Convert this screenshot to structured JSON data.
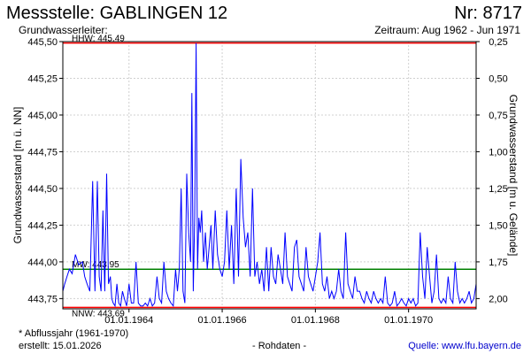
{
  "header": {
    "title": "Messstelle: GABLINGEN 12",
    "number": "Nr: 8717",
    "subtitle": "Grundwasserleiter:",
    "period": "Zeitraum: Aug 1962 - Jun 1971"
  },
  "footer": {
    "footnote": "* Abflussjahr (1961-1970)",
    "created": "erstellt:  15.01.2026",
    "rawdata": "- Rohdaten -",
    "source": "Quelle:  www.lfu.bayern.de"
  },
  "colors": {
    "series": "#0000ff",
    "extreme_lines": "#ff0000",
    "mean_line": "#008000",
    "grid": "#d0d0d0"
  },
  "chart_data": {
    "type": "line",
    "ylabel_left": "Grundwasserstand [m ü. NN]",
    "ylabel_right": "Grundwasserstand [m u. Gelände]",
    "ylim": [
      443.68,
      445.5
    ],
    "left_ticks": [
      "443,75",
      "444,00",
      "444,25",
      "444,50",
      "444,75",
      "445,00",
      "445,25",
      "445,50"
    ],
    "right_ticks": [
      "0,25",
      "0,50",
      "0,75",
      "1,00",
      "1,25",
      "1,50",
      "1,75",
      "2,00"
    ],
    "right_tick_values": [
      445.5,
      445.25,
      445.0,
      444.75,
      444.5,
      444.25,
      444.0,
      443.75
    ],
    "xlim": [
      "1962-08",
      "1971-06"
    ],
    "x_ticks": [
      "01.01.1964",
      "01.01.1966",
      "01.01.1968",
      "01.01.1970"
    ],
    "x_tick_values": [
      1964.0,
      1966.0,
      1968.0,
      1970.0
    ],
    "x_range_numeric": [
      1962.58,
      1971.45
    ],
    "grid": true,
    "reference_lines": [
      {
        "label": "HHW: 445.49",
        "value": 445.49,
        "color": "#ff0000"
      },
      {
        "label": "MW: 443.95",
        "value": 443.95,
        "color": "#008000"
      },
      {
        "label": "NNW: 443.69",
        "value": 443.69,
        "color": "#ff0000"
      }
    ],
    "series": [
      {
        "x": [
          1962.58,
          1962.62,
          1962.67,
          1962.72,
          1962.78,
          1962.85,
          1962.92,
          1963.0,
          1963.05,
          1963.1,
          1963.16,
          1963.22,
          1963.27,
          1963.32,
          1963.36,
          1963.4,
          1963.44,
          1963.48,
          1963.52,
          1963.56,
          1963.6,
          1963.63,
          1963.66,
          1963.7,
          1963.74,
          1963.78,
          1963.82,
          1963.86,
          1963.9,
          1963.95,
          1964.0,
          1964.05,
          1964.1,
          1964.15,
          1964.2,
          1964.25,
          1964.3,
          1964.35,
          1964.4,
          1964.45,
          1964.5,
          1964.55,
          1964.6,
          1964.65,
          1964.7,
          1964.75,
          1964.8,
          1964.85,
          1964.9,
          1964.95,
          1965.0,
          1965.04,
          1965.08,
          1965.12,
          1965.16,
          1965.2,
          1965.24,
          1965.28,
          1965.32,
          1965.35,
          1965.38,
          1965.41,
          1965.44,
          1965.47,
          1965.5,
          1965.53,
          1965.56,
          1965.6,
          1965.64,
          1965.68,
          1965.72,
          1965.76,
          1965.8,
          1965.85,
          1965.9,
          1965.95,
          1966.0,
          1966.05,
          1966.1,
          1966.15,
          1966.2,
          1966.25,
          1966.3,
          1966.35,
          1966.4,
          1966.45,
          1966.5,
          1966.55,
          1966.6,
          1966.65,
          1966.7,
          1966.75,
          1966.8,
          1966.85,
          1966.9,
          1966.95,
          1967.0,
          1967.05,
          1967.1,
          1967.15,
          1967.2,
          1967.25,
          1967.3,
          1967.35,
          1967.4,
          1967.45,
          1967.5,
          1967.55,
          1967.6,
          1967.65,
          1967.7,
          1967.75,
          1967.8,
          1967.85,
          1967.9,
          1967.95,
          1968.0,
          1968.05,
          1968.1,
          1968.15,
          1968.2,
          1968.25,
          1968.3,
          1968.35,
          1968.4,
          1968.45,
          1968.5,
          1968.55,
          1968.6,
          1968.65,
          1968.7,
          1968.75,
          1968.8,
          1968.85,
          1968.9,
          1968.95,
          1969.0,
          1969.05,
          1969.1,
          1969.15,
          1969.2,
          1969.25,
          1969.3,
          1969.35,
          1969.4,
          1969.45,
          1969.5,
          1969.55,
          1969.6,
          1969.65,
          1969.7,
          1969.75,
          1969.8,
          1969.85,
          1969.9,
          1969.95,
          1970.0,
          1970.05,
          1970.1,
          1970.15,
          1970.2,
          1970.25,
          1970.3,
          1970.35,
          1970.4,
          1970.45,
          1970.5,
          1970.55,
          1970.6,
          1970.65,
          1970.7,
          1970.75,
          1970.8,
          1970.85,
          1970.9,
          1970.95,
          1971.0,
          1971.05,
          1971.1,
          1971.15,
          1971.2,
          1971.25,
          1971.3,
          1971.35,
          1971.4,
          1971.45
        ],
        "y": [
          443.8,
          443.85,
          443.9,
          443.95,
          443.92,
          444.05,
          443.98,
          444.0,
          443.9,
          443.85,
          443.8,
          444.55,
          443.8,
          444.55,
          443.9,
          443.8,
          444.35,
          443.8,
          444.6,
          443.85,
          443.9,
          443.75,
          443.72,
          443.7,
          443.85,
          443.72,
          443.7,
          443.8,
          443.75,
          443.7,
          443.85,
          443.72,
          443.72,
          444.0,
          443.72,
          443.7,
          443.7,
          443.72,
          443.7,
          443.75,
          443.7,
          443.72,
          443.9,
          443.75,
          443.72,
          444.0,
          443.8,
          443.75,
          443.72,
          443.7,
          443.95,
          443.8,
          443.95,
          444.5,
          443.8,
          443.72,
          444.6,
          444.2,
          444.0,
          445.15,
          443.8,
          444.3,
          445.49,
          443.95,
          444.3,
          444.2,
          444.35,
          444.0,
          444.2,
          443.95,
          444.1,
          444.25,
          443.95,
          444.35,
          444.05,
          443.95,
          443.9,
          444.0,
          444.35,
          443.95,
          444.25,
          443.85,
          444.5,
          443.9,
          444.7,
          444.3,
          444.1,
          444.2,
          443.9,
          444.5,
          443.9,
          444.0,
          443.85,
          443.95,
          443.8,
          444.1,
          443.8,
          444.1,
          443.9,
          443.85,
          444.05,
          443.95,
          443.85,
          444.2,
          443.9,
          443.85,
          443.8,
          444.1,
          444.15,
          443.9,
          443.85,
          443.8,
          444.1,
          443.9,
          443.85,
          443.8,
          443.9,
          444.0,
          444.2,
          443.85,
          443.8,
          443.9,
          443.75,
          443.8,
          443.75,
          443.8,
          443.95,
          443.8,
          443.75,
          444.2,
          443.85,
          443.8,
          443.75,
          443.9,
          443.8,
          443.8,
          443.75,
          443.72,
          443.8,
          443.75,
          443.72,
          443.8,
          443.75,
          443.72,
          443.75,
          443.72,
          443.9,
          443.72,
          443.7,
          443.72,
          443.8,
          443.7,
          443.72,
          443.75,
          443.72,
          443.7,
          443.75,
          443.72,
          443.75,
          443.7,
          443.72,
          444.2,
          443.9,
          443.75,
          444.1,
          443.9,
          443.72,
          443.8,
          444.05,
          443.75,
          443.72,
          443.75,
          443.72,
          443.9,
          443.75,
          443.72,
          444.0,
          443.8,
          443.72,
          443.75,
          443.72,
          443.75,
          443.8,
          443.72,
          443.75,
          443.85
        ]
      }
    ]
  }
}
